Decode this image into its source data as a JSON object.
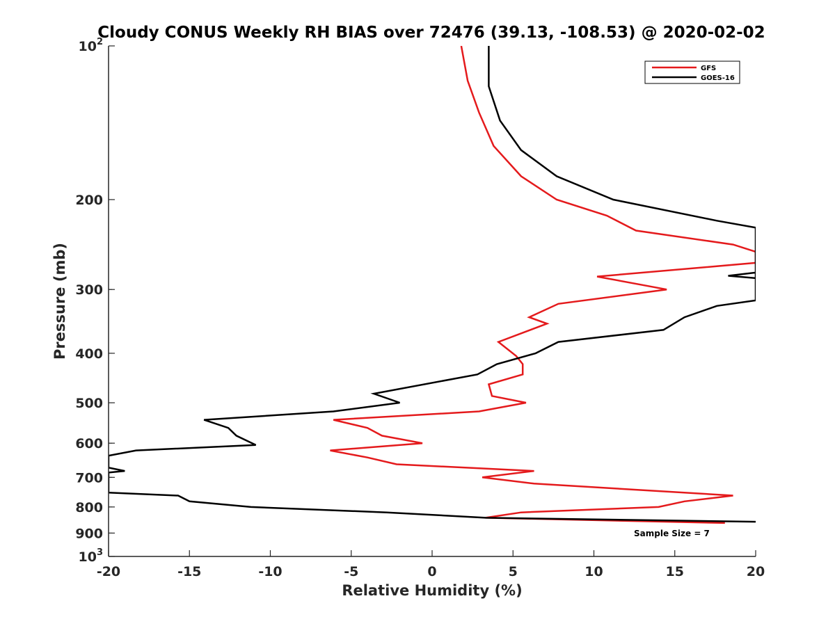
{
  "chart_data": {
    "type": "line",
    "title": "Cloudy CONUS Weekly RH BIAS over 72476 (39.13, -108.53) @ 2020-02-02",
    "xlabel": "Relative Humidity (%)",
    "ylabel": "Pressure (mb)",
    "xlim": [
      -20,
      20
    ],
    "ylim": [
      100,
      1000
    ],
    "y_scale": "log",
    "y_reversed": false,
    "grid": false,
    "legend_position": "top-right",
    "x_ticks": [
      {
        "value": -20,
        "label": "-20"
      },
      {
        "value": -15,
        "label": "-15"
      },
      {
        "value": -10,
        "label": "-10"
      },
      {
        "value": -5,
        "label": "-5"
      },
      {
        "value": 0,
        "label": "0"
      },
      {
        "value": 5,
        "label": "5"
      },
      {
        "value": 10,
        "label": "10"
      },
      {
        "value": 15,
        "label": "15"
      },
      {
        "value": 20,
        "label": "20"
      }
    ],
    "y_ticks": [
      {
        "value": 100,
        "label": "10",
        "sup": "2"
      },
      {
        "value": 200,
        "label": "200"
      },
      {
        "value": 300,
        "label": "300"
      },
      {
        "value": 400,
        "label": "400"
      },
      {
        "value": 500,
        "label": "500"
      },
      {
        "value": 600,
        "label": "600"
      },
      {
        "value": 700,
        "label": "700"
      },
      {
        "value": 800,
        "label": "800"
      },
      {
        "value": 900,
        "label": "900"
      },
      {
        "value": 1000,
        "label": "10",
        "sup": "3"
      }
    ],
    "series": [
      {
        "name": "GFS",
        "color": "#e41a1c",
        "points": [
          [
            1.8,
            100
          ],
          [
            2.2,
            117
          ],
          [
            2.9,
            135
          ],
          [
            3.8,
            157
          ],
          [
            5.5,
            180
          ],
          [
            7.7,
            200
          ],
          [
            10.8,
            215
          ],
          [
            12.6,
            230
          ],
          [
            18.6,
            245
          ],
          [
            20.0,
            253
          ],
          [
            20.0,
            266
          ],
          [
            10.2,
            283
          ],
          [
            14.5,
            300
          ],
          [
            7.8,
            320
          ],
          [
            6.0,
            340
          ],
          [
            7.1,
            350
          ],
          [
            4.1,
            380
          ],
          [
            5.2,
            405
          ],
          [
            5.6,
            420
          ],
          [
            5.6,
            440
          ],
          [
            3.5,
            460
          ],
          [
            3.7,
            485
          ],
          [
            5.8,
            500
          ],
          [
            2.9,
            520
          ],
          [
            -6.1,
            540
          ],
          [
            -4.0,
            560
          ],
          [
            -3.1,
            580
          ],
          [
            -0.6,
            600
          ],
          [
            -6.3,
            620
          ],
          [
            -4.0,
            640
          ],
          [
            -2.2,
            660
          ],
          [
            6.3,
            680
          ],
          [
            3.1,
            700
          ],
          [
            6.3,
            720
          ],
          [
            18.6,
            760
          ],
          [
            15.6,
            780
          ],
          [
            14.0,
            800
          ],
          [
            5.5,
            820
          ],
          [
            3.3,
            840
          ],
          [
            18.1,
            860
          ]
        ]
      },
      {
        "name": "GOES-16",
        "color": "#000000",
        "points": [
          [
            3.5,
            100
          ],
          [
            3.5,
            120
          ],
          [
            4.2,
            140
          ],
          [
            5.5,
            160
          ],
          [
            7.7,
            180
          ],
          [
            11.2,
            200
          ],
          [
            17.6,
            220
          ],
          [
            20.0,
            227
          ],
          [
            20.0,
            240
          ],
          [
            20.0,
            285
          ],
          [
            18.3,
            282
          ],
          [
            20.0,
            278
          ],
          [
            20.0,
            270
          ],
          [
            20.0,
            315
          ],
          [
            17.6,
            323
          ],
          [
            15.6,
            340
          ],
          [
            14.3,
            360
          ],
          [
            7.8,
            380
          ],
          [
            6.4,
            400
          ],
          [
            4.0,
            420
          ],
          [
            2.8,
            440
          ],
          [
            -3.6,
            480
          ],
          [
            -2.0,
            500
          ],
          [
            -6.1,
            520
          ],
          [
            -14.1,
            540
          ],
          [
            -12.6,
            560
          ],
          [
            -12.1,
            580
          ],
          [
            -10.9,
            605
          ],
          [
            -18.3,
            620
          ],
          [
            -20.0,
            635
          ],
          [
            -20.0,
            670
          ],
          [
            -19.0,
            680
          ],
          [
            -20.0,
            685
          ],
          [
            -20.0,
            690
          ],
          [
            -20.0,
            750
          ],
          [
            -15.7,
            760
          ],
          [
            -15.0,
            780
          ],
          [
            -11.2,
            800
          ],
          [
            -2.8,
            820
          ],
          [
            3.3,
            840
          ],
          [
            20.0,
            855
          ]
        ]
      }
    ],
    "annotation": "Sample Size = 7"
  }
}
